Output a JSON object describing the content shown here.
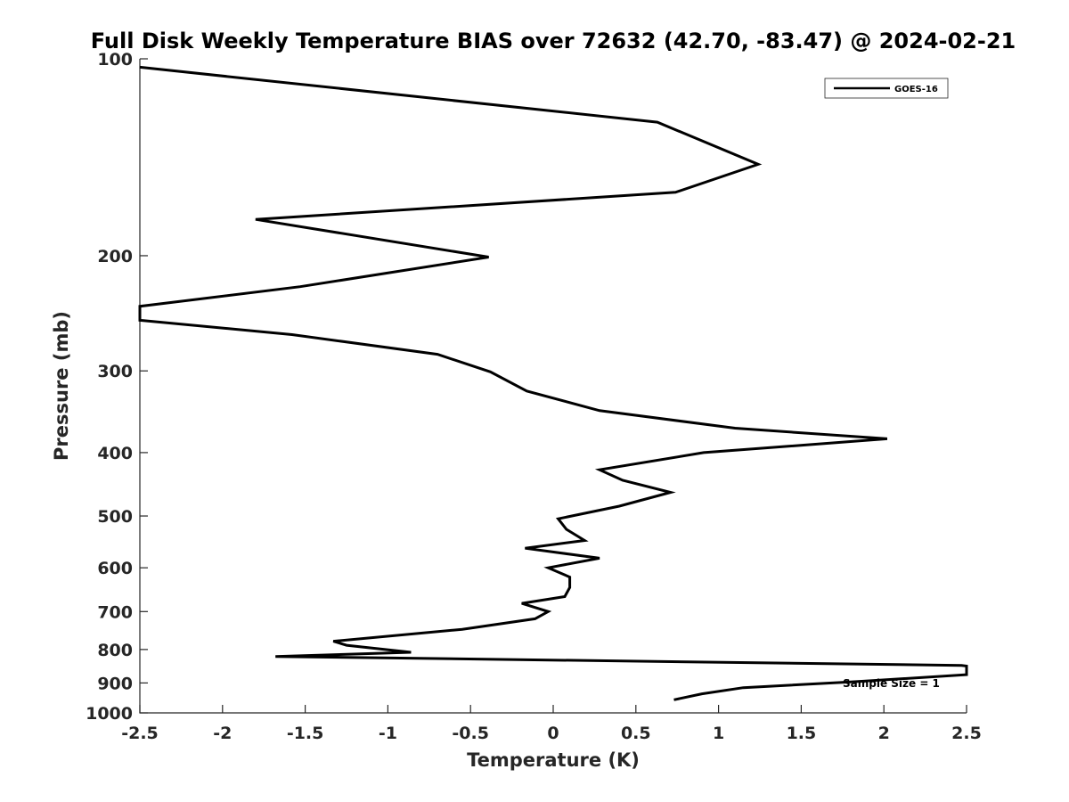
{
  "chart_data": {
    "type": "line",
    "title": "Full Disk Weekly Temperature BIAS over 72632 (42.70, -83.47) @ 2024-02-21",
    "xlabel": "Temperature (K)",
    "ylabel": "Pressure (mb)",
    "xlim": [
      -2.5,
      2.5
    ],
    "ylim": [
      1000,
      100
    ],
    "yscale": "log",
    "grid": false,
    "legend_position": "top-right",
    "xticks": [
      "-2.5",
      "-2",
      "-1.5",
      "-1",
      "-0.5",
      "0",
      "0.5",
      "1",
      "1.5",
      "2",
      "2.5"
    ],
    "yticks": [
      "100",
      "200",
      "300",
      "400",
      "500",
      "600",
      "700",
      "800",
      "900",
      "1000"
    ],
    "annotation": "Sample Size = 1",
    "line_color": "#000000",
    "series": [
      {
        "name": "GOES-16",
        "x": [
          -2.5,
          0.63,
          1.24,
          0.74,
          -1.8,
          -0.39,
          -1.53,
          -2.5,
          -2.5,
          -1.58,
          -0.7,
          -0.38,
          -0.16,
          0.28,
          1.1,
          2.02,
          0.91,
          0.28,
          0.42,
          0.71,
          0.4,
          0.03,
          0.08,
          0.19,
          -0.17,
          0.28,
          -0.03,
          0.1,
          0.1,
          0.07,
          -0.19,
          -0.03,
          -0.11,
          -0.55,
          -1.33,
          -1.25,
          -0.86,
          -1.68,
          2.47,
          2.5,
          2.5,
          1.8,
          1.15,
          0.9,
          0.73
        ],
        "y": [
          103,
          125,
          145,
          160,
          176,
          201,
          223,
          239,
          251,
          264,
          283,
          301,
          322,
          345,
          367,
          381,
          400,
          425,
          441,
          460,
          483,
          505,
          524,
          545,
          560,
          580,
          600,
          620,
          643,
          664,
          680,
          700,
          718,
          745,
          777,
          788,
          808,
          820,
          846,
          848,
          874,
          897,
          915,
          935,
          955
        ]
      }
    ]
  }
}
